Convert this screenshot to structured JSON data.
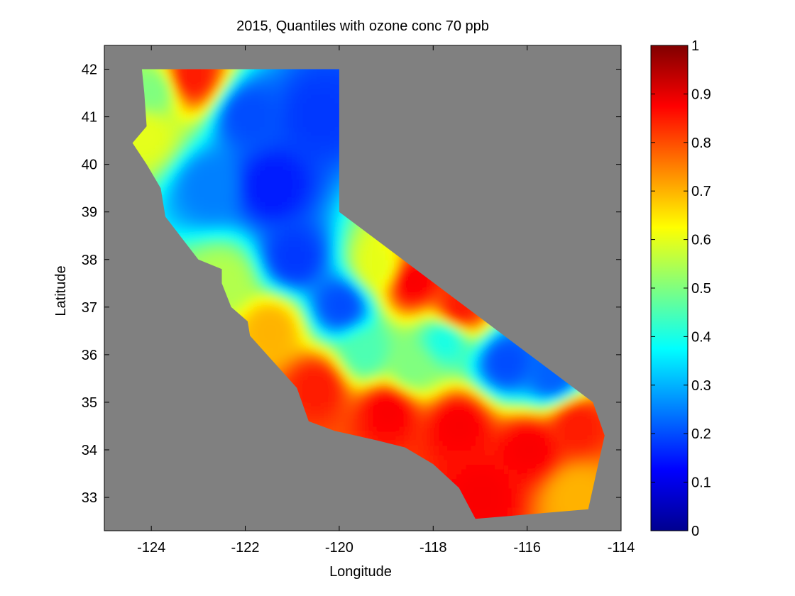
{
  "chart_data": {
    "type": "heatmap",
    "title": "2015, Quantiles with ozone conc 70 ppb",
    "xlabel": "Longitude",
    "ylabel": "Latitude",
    "xlim": [
      -125.0,
      -114.0
    ],
    "ylim": [
      32.3,
      42.5
    ],
    "x_ticks": [
      -124,
      -122,
      -120,
      -118,
      -116,
      -114
    ],
    "y_ticks": [
      33,
      34,
      35,
      36,
      37,
      38,
      39,
      40,
      41,
      42
    ],
    "background_color": "#808080",
    "colormap": "jet",
    "clim": [
      0,
      1
    ],
    "colorbar_ticks": [
      0,
      0.1,
      0.2,
      0.3,
      0.4,
      0.5,
      0.6,
      0.7,
      0.8,
      0.9,
      1
    ],
    "region": "California",
    "region_boundary": [
      [
        -124.2,
        42.0
      ],
      [
        -120.0,
        42.0
      ],
      [
        -120.0,
        39.0
      ],
      [
        -114.6,
        35.0
      ],
      [
        -114.35,
        34.3
      ],
      [
        -114.7,
        32.75
      ],
      [
        -117.1,
        32.55
      ],
      [
        -117.45,
        33.2
      ],
      [
        -118.0,
        33.7
      ],
      [
        -118.6,
        34.05
      ],
      [
        -119.2,
        34.2
      ],
      [
        -120.1,
        34.4
      ],
      [
        -120.65,
        34.6
      ],
      [
        -120.9,
        35.3
      ],
      [
        -121.9,
        36.4
      ],
      [
        -121.95,
        36.7
      ],
      [
        -122.3,
        37.0
      ],
      [
        -122.5,
        37.5
      ],
      [
        -122.5,
        37.8
      ],
      [
        -123.0,
        38.0
      ],
      [
        -123.7,
        38.9
      ],
      [
        -123.8,
        39.5
      ],
      [
        -124.1,
        40.0
      ],
      [
        -124.4,
        40.45
      ],
      [
        -124.1,
        40.8
      ],
      [
        -124.15,
        41.5
      ],
      [
        -124.2,
        42.0
      ]
    ],
    "value_field": [
      {
        "lon": -121.5,
        "lat": 39.5,
        "value": 0.15
      },
      {
        "lon": -120.5,
        "lat": 41.0,
        "value": 0.18
      },
      {
        "lon": -122.0,
        "lat": 41.0,
        "value": 0.2
      },
      {
        "lon": -121.0,
        "lat": 38.0,
        "value": 0.18
      },
      {
        "lon": -120.0,
        "lat": 37.0,
        "value": 0.2
      },
      {
        "lon": -122.8,
        "lat": 39.5,
        "value": 0.25
      },
      {
        "lon": -123.2,
        "lat": 41.8,
        "value": 0.85
      },
      {
        "lon": -124.0,
        "lat": 41.5,
        "value": 0.5
      },
      {
        "lon": -124.2,
        "lat": 40.6,
        "value": 0.6
      },
      {
        "lon": -122.5,
        "lat": 37.5,
        "value": 0.55
      },
      {
        "lon": -118.5,
        "lat": 37.5,
        "value": 0.88
      },
      {
        "lon": -117.5,
        "lat": 36.9,
        "value": 0.85
      },
      {
        "lon": -119.2,
        "lat": 37.8,
        "value": 0.6
      },
      {
        "lon": -117.8,
        "lat": 36.3,
        "value": 0.4
      },
      {
        "lon": -116.5,
        "lat": 35.8,
        "value": 0.2
      },
      {
        "lon": -115.5,
        "lat": 35.5,
        "value": 0.22
      },
      {
        "lon": -119.5,
        "lat": 36.0,
        "value": 0.45
      },
      {
        "lon": -118.5,
        "lat": 35.7,
        "value": 0.5
      },
      {
        "lon": -120.5,
        "lat": 35.3,
        "value": 0.85
      },
      {
        "lon": -119.0,
        "lat": 34.8,
        "value": 0.88
      },
      {
        "lon": -117.5,
        "lat": 34.5,
        "value": 0.88
      },
      {
        "lon": -116.0,
        "lat": 34.0,
        "value": 0.88
      },
      {
        "lon": -115.0,
        "lat": 34.5,
        "value": 0.85
      },
      {
        "lon": -115.0,
        "lat": 33.0,
        "value": 0.7
      },
      {
        "lon": -117.0,
        "lat": 33.0,
        "value": 0.88
      },
      {
        "lon": -121.5,
        "lat": 36.5,
        "value": 0.7
      }
    ]
  }
}
